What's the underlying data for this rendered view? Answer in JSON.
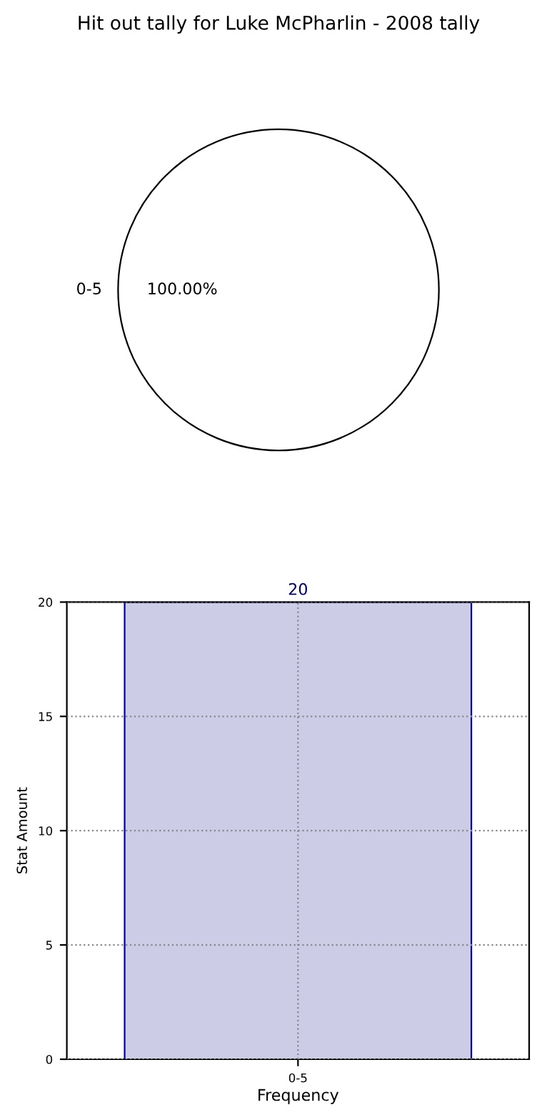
{
  "chart_data": [
    {
      "type": "pie",
      "title": "Hit out tally for Luke McPharlin - 2008 tally",
      "categories": [
        "0-5"
      ],
      "values": [
        100
      ],
      "colors": [
        "#ffffff"
      ],
      "value_labels": [
        "100.00%"
      ]
    },
    {
      "type": "bar",
      "categories": [
        "0-5"
      ],
      "values": [
        20
      ],
      "color": "#cccce6",
      "xlabel": "Frequency",
      "ylabel": "Stat Amount",
      "ylim": [
        0,
        20
      ],
      "yticks": [
        0,
        5,
        10,
        15,
        20
      ],
      "grid": true,
      "line_style": "dotted",
      "data_labels": true
    }
  ]
}
